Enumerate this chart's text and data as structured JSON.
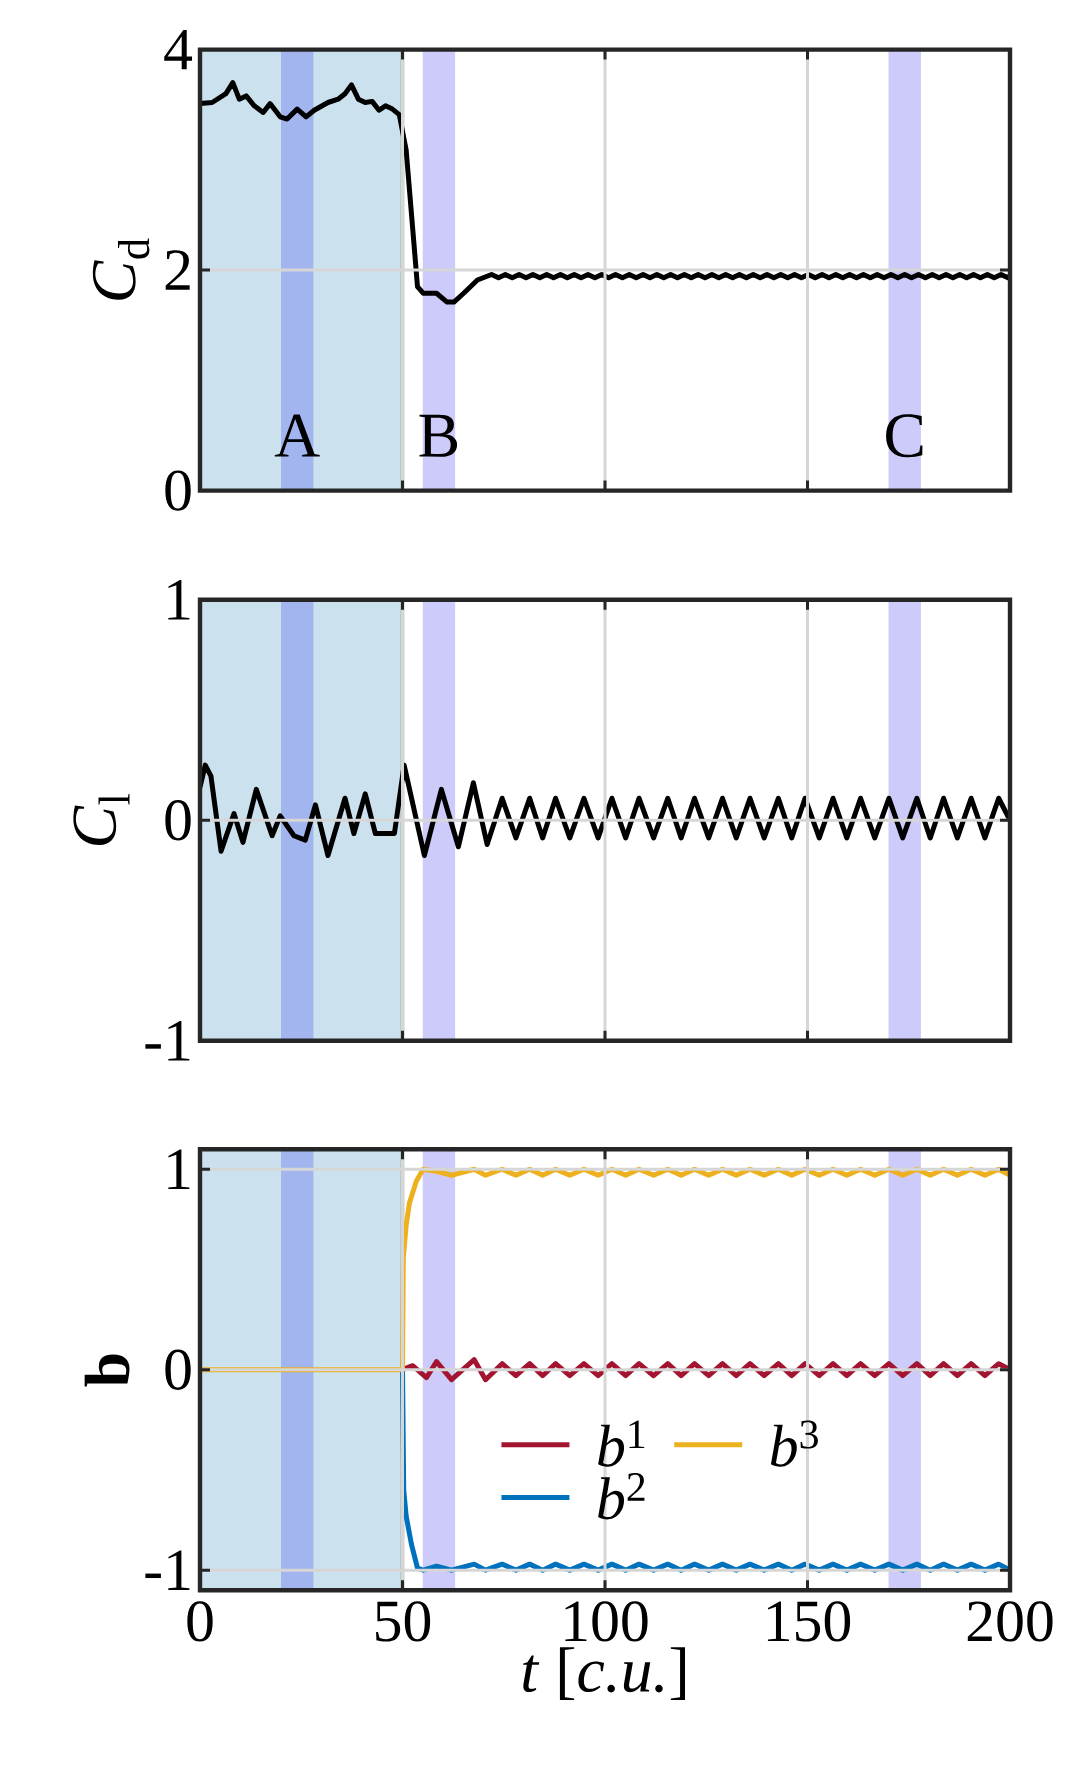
{
  "chart_data": [
    {
      "type": "line",
      "ylabel": "*C*$_{d}$",
      "xlim": [
        0,
        200
      ],
      "xticks": [
        0,
        50,
        100,
        150,
        200
      ],
      "ylim": [
        0,
        4
      ],
      "yticks": [
        0,
        2,
        4
      ],
      "grid": true,
      "tick_labels": "y",
      "bands": [
        {
          "axis": "x",
          "from": 0,
          "to": 50,
          "color": "#cbe1ee"
        },
        {
          "axis": "x",
          "from": 20,
          "to": 28,
          "color": "#a3b5ef",
          "label": "A"
        },
        {
          "axis": "x",
          "from": 55,
          "to": 63,
          "color": "#cccbfa",
          "label": "B"
        },
        {
          "axis": "x",
          "from": 170,
          "to": 178,
          "color": "#cccbfa",
          "label": "C"
        }
      ],
      "ref_lines": [
        {
          "axis": "x",
          "value": 50,
          "color": "#000000"
        }
      ],
      "series": [
        {
          "color": "#000000",
          "x": [
            0,
            3,
            6.4,
            8.1,
            9.7,
            11.4,
            13.4,
            15.6,
            17.3,
            19.8,
            21.5,
            24,
            26.2,
            28.2,
            31.6,
            34.1,
            35.8,
            37.4,
            39.1,
            40.8,
            42.5,
            44.2,
            45.8,
            47.5,
            49.2,
            50.9,
            52.6,
            53.7,
            55.1,
            58.4,
            61,
            62.7,
            65.1,
            68.5,
            72,
            73.7,
            75.4,
            77.1,
            78.8,
            80.5,
            82.2,
            83.9,
            85.6,
            87.3,
            89,
            90.7,
            92.4,
            94.1,
            95.8,
            97.5,
            99.2,
            100.9,
            102.6,
            104.3,
            106,
            107.7,
            109.4,
            111.1,
            112.8,
            114.5,
            116.2,
            117.9,
            119.6,
            121.3,
            123,
            124.7,
            126.4,
            128.1,
            129.8,
            131.5,
            133.2,
            134.9,
            136.6,
            138.3,
            140,
            141.7,
            143.4,
            145.1,
            146.8,
            148.5,
            150.2,
            151.9,
            153.6,
            155.3,
            157,
            158.7,
            160.4,
            162.1,
            163.8,
            165.5,
            167.2,
            168.9,
            170.6,
            172.3,
            174,
            175.7,
            177.4,
            179.1,
            180.8,
            182.5,
            184.2,
            185.9,
            187.6,
            189.3,
            191,
            192.7,
            194.4,
            196.1,
            197.8,
            199.5,
            200
          ],
          "values": [
            3.51,
            3.52,
            3.6,
            3.7,
            3.55,
            3.58,
            3.49,
            3.43,
            3.51,
            3.39,
            3.37,
            3.46,
            3.39,
            3.45,
            3.52,
            3.55,
            3.6,
            3.68,
            3.55,
            3.52,
            3.53,
            3.45,
            3.49,
            3.46,
            3.41,
            3.09,
            2.34,
            1.85,
            1.79,
            1.79,
            1.71,
            1.71,
            1.79,
            1.91,
            1.96,
            1.93,
            1.96,
            1.93,
            1.96,
            1.93,
            1.96,
            1.93,
            1.96,
            1.93,
            1.96,
            1.93,
            1.96,
            1.93,
            1.96,
            1.93,
            1.96,
            1.93,
            1.96,
            1.93,
            1.96,
            1.93,
            1.96,
            1.93,
            1.96,
            1.93,
            1.96,
            1.93,
            1.96,
            1.93,
            1.96,
            1.93,
            1.96,
            1.93,
            1.96,
            1.93,
            1.96,
            1.93,
            1.96,
            1.93,
            1.96,
            1.93,
            1.96,
            1.93,
            1.96,
            1.93,
            1.96,
            1.93,
            1.96,
            1.93,
            1.96,
            1.93,
            1.96,
            1.93,
            1.96,
            1.93,
            1.96,
            1.93,
            1.96,
            1.93,
            1.96,
            1.93,
            1.96,
            1.93,
            1.96,
            1.93,
            1.96,
            1.93,
            1.96,
            1.93,
            1.96,
            1.93,
            1.96,
            1.93,
            1.96,
            1.93,
            1.95
          ]
        }
      ]
    },
    {
      "type": "line",
      "ylabel": "*C*$_{l}$",
      "xlim": [
        0,
        200
      ],
      "xticks": [
        0,
        50,
        100,
        150,
        200
      ],
      "ylim": [
        -1,
        1
      ],
      "yticks": [
        -1,
        0,
        1
      ],
      "grid": true,
      "tick_labels": "y",
      "bands": [
        {
          "axis": "x",
          "from": 0,
          "to": 50,
          "color": "#cbe1ee"
        },
        {
          "axis": "x",
          "from": 20,
          "to": 28,
          "color": "#a3b5ef"
        },
        {
          "axis": "x",
          "from": 55,
          "to": 63,
          "color": "#cccbfa"
        },
        {
          "axis": "x",
          "from": 170,
          "to": 178,
          "color": "#cccbfa"
        }
      ],
      "ref_lines": [
        {
          "axis": "x",
          "value": 50,
          "color": "#000000"
        }
      ],
      "series": [
        {
          "color": "#000000",
          "x": [
            0,
            1.3,
            2.7,
            5.2,
            8.4,
            10.6,
            13.9,
            17.8,
            19.8,
            23.2,
            26,
            28.5,
            31.6,
            35.8,
            38,
            40.8,
            43.3,
            48,
            50.4,
            55.4,
            59.6,
            63.8,
            67.5,
            70.9,
            74.6,
            78,
            81.4,
            84.6,
            87.8,
            91.3,
            94.8,
            98.3,
            101.7,
            105.1,
            108.4,
            112,
            115.5,
            118.8,
            122.1,
            125.6,
            129,
            132.4,
            135.8,
            139.3,
            142.8,
            146.1,
            149.4,
            152.9,
            156.3,
            159.7,
            163.1,
            166.6,
            170.1,
            173.5,
            177,
            180.3,
            183.6,
            187,
            190.4,
            193.8,
            197.2,
            200
          ],
          "values": [
            0.15,
            0.25,
            0.2,
            -0.14,
            0.03,
            -0.1,
            0.14,
            -0.07,
            0.02,
            -0.07,
            -0.09,
            0.07,
            -0.16,
            0.1,
            -0.06,
            0.12,
            -0.06,
            -0.06,
            0.25,
            -0.16,
            0.14,
            -0.12,
            0.17,
            -0.11,
            0.1,
            -0.08,
            0.1,
            -0.08,
            0.1,
            -0.08,
            0.1,
            -0.08,
            0.1,
            -0.08,
            0.1,
            -0.08,
            0.1,
            -0.08,
            0.1,
            -0.08,
            0.1,
            -0.08,
            0.1,
            -0.08,
            0.1,
            -0.08,
            0.1,
            -0.08,
            0.1,
            -0.08,
            0.1,
            -0.08,
            0.1,
            -0.08,
            0.1,
            -0.08,
            0.1,
            -0.08,
            0.1,
            -0.08,
            0.1,
            0.0
          ]
        }
      ]
    },
    {
      "type": "line",
      "ylabel": "**b**",
      "xlabel": "*t* [*c.u.*]",
      "xlim": [
        0,
        200
      ],
      "xticks": [
        0,
        50,
        100,
        150,
        200
      ],
      "ylim": [
        -1.1,
        1.1
      ],
      "yticks": [
        -1,
        0,
        1
      ],
      "grid": true,
      "legend": "bottom",
      "bands": [
        {
          "axis": "x",
          "from": 0,
          "to": 50,
          "color": "#cbe1ee"
        },
        {
          "axis": "x",
          "from": 20,
          "to": 28,
          "color": "#a3b5ef"
        },
        {
          "axis": "x",
          "from": 55,
          "to": 63,
          "color": "#cccbfa"
        },
        {
          "axis": "x",
          "from": 170,
          "to": 178,
          "color": "#cccbfa"
        }
      ],
      "ref_lines": [
        {
          "axis": "x",
          "value": 50,
          "color": "#000000"
        }
      ],
      "series": [
        {
          "name": "*b*$^{1}$",
          "color": "#a2142f",
          "x": [
            50,
            52.5,
            55.9,
            58.4,
            62.1,
            67.7,
            70.5,
            74.6,
            78,
            81.4,
            84.6,
            87.8,
            91.3,
            94.8,
            98.3,
            101.7,
            105.1,
            108.4,
            112,
            115.5,
            118.8,
            122.1,
            125.6,
            129,
            132.4,
            135.8,
            139.3,
            142.8,
            146.1,
            149.4,
            152.9,
            156.3,
            159.7,
            163.1,
            166.6,
            170.1,
            173.5,
            177,
            180.3,
            183.6,
            187,
            190.4,
            193.8,
            197.2,
            200
          ],
          "values": [
            0,
            0.02,
            -0.04,
            0.04,
            -0.05,
            0.05,
            -0.05,
            0.03,
            -0.03,
            0.03,
            -0.03,
            0.03,
            -0.03,
            0.03,
            -0.03,
            0.03,
            -0.03,
            0.03,
            -0.03,
            0.03,
            -0.03,
            0.03,
            -0.03,
            0.03,
            -0.03,
            0.03,
            -0.03,
            0.03,
            -0.03,
            0.03,
            -0.03,
            0.03,
            -0.03,
            0.03,
            -0.03,
            0.03,
            -0.03,
            0.03,
            -0.03,
            0.03,
            -0.03,
            0.03,
            -0.03,
            0.03,
            0.0
          ]
        },
        {
          "name": "*b*$^{2}$",
          "color": "#0072bd",
          "x": [
            50,
            50.3,
            50.9,
            52.2,
            53.7,
            55.1,
            58.4,
            62.1,
            67.7,
            70.5,
            74.6,
            78,
            81.4,
            84.6,
            87.8,
            91.3,
            94.8,
            98.3,
            101.7,
            105.1,
            108.4,
            112,
            115.5,
            118.8,
            122.1,
            125.6,
            129,
            132.4,
            135.8,
            139.3,
            142.8,
            146.1,
            149.4,
            152.9,
            156.3,
            159.7,
            163.1,
            166.6,
            170.1,
            173.5,
            177,
            180.3,
            183.6,
            187,
            190.4,
            193.8,
            197.2,
            200
          ],
          "values": [
            0,
            -0.6,
            -0.73,
            -0.87,
            -0.99,
            -1,
            -0.98,
            -1,
            -0.97,
            -1,
            -0.97,
            -1,
            -0.97,
            -1,
            -0.97,
            -1,
            -0.97,
            -1,
            -0.97,
            -1,
            -0.97,
            -1,
            -0.97,
            -1,
            -0.97,
            -1,
            -0.97,
            -1,
            -0.97,
            -1,
            -0.97,
            -1,
            -0.97,
            -1,
            -0.97,
            -1,
            -0.97,
            -1,
            -0.97,
            -1,
            -0.97,
            -1,
            -0.97,
            -1,
            -0.97,
            -1,
            -0.97,
            -1
          ]
        },
        {
          "name": "*b*$^{3}$",
          "color": "#edb120",
          "x": [
            0,
            50,
            50.2,
            50.9,
            51.7,
            53.4,
            55.1,
            58.4,
            62.1,
            67.7,
            70.5,
            74.6,
            78,
            81.4,
            84.6,
            87.8,
            91.3,
            94.8,
            98.3,
            101.7,
            105.1,
            108.4,
            112,
            115.5,
            118.8,
            122.1,
            125.6,
            129,
            132.4,
            135.8,
            139.3,
            142.8,
            146.1,
            149.4,
            152.9,
            156.3,
            159.7,
            163.1,
            166.6,
            170.1,
            173.5,
            177,
            180.3,
            183.6,
            187,
            190.4,
            193.8,
            197.2,
            200
          ],
          "values": [
            0,
            0,
            0.56,
            0.72,
            0.83,
            0.94,
            1,
            0.99,
            0.97,
            1,
            0.97,
            1,
            0.97,
            1,
            0.97,
            1,
            0.97,
            1,
            0.97,
            1,
            0.97,
            1,
            0.97,
            1,
            0.97,
            1,
            0.97,
            1,
            0.97,
            1,
            0.97,
            1,
            0.97,
            1,
            0.97,
            1,
            0.97,
            1,
            0.97,
            1,
            0.97,
            1,
            0.97,
            1,
            0.97,
            1,
            0.97,
            1,
            0.97
          ]
        }
      ]
    }
  ]
}
